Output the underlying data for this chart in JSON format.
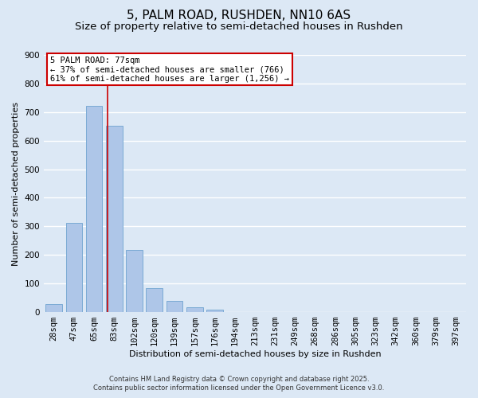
{
  "title": "5, PALM ROAD, RUSHDEN, NN10 6AS",
  "subtitle": "Size of property relative to semi-detached houses in Rushden",
  "xlabel": "Distribution of semi-detached houses by size in Rushden",
  "ylabel": "Number of semi-detached properties",
  "bin_labels": [
    "28sqm",
    "47sqm",
    "65sqm",
    "83sqm",
    "102sqm",
    "120sqm",
    "139sqm",
    "157sqm",
    "176sqm",
    "194sqm",
    "213sqm",
    "231sqm",
    "249sqm",
    "268sqm",
    "286sqm",
    "305sqm",
    "323sqm",
    "342sqm",
    "360sqm",
    "379sqm",
    "397sqm"
  ],
  "bar_values": [
    28,
    311,
    722,
    652,
    217,
    85,
    38,
    17,
    8,
    0,
    0,
    0,
    0,
    0,
    0,
    0,
    0,
    0,
    0,
    0,
    0
  ],
  "bar_color": "#aec6e8",
  "bar_edge_color": "#7aaad4",
  "background_color": "#dce8f5",
  "grid_color": "#ffffff",
  "vline_color": "#cc0000",
  "annotation_box_text": "5 PALM ROAD: 77sqm\n← 37% of semi-detached houses are smaller (766)\n61% of semi-detached houses are larger (1,256) →",
  "annotation_box_color": "#cc0000",
  "ylim": [
    0,
    900
  ],
  "yticks": [
    0,
    100,
    200,
    300,
    400,
    500,
    600,
    700,
    800,
    900
  ],
  "footer1": "Contains HM Land Registry data © Crown copyright and database right 2025.",
  "footer2": "Contains public sector information licensed under the Open Government Licence v3.0.",
  "title_fontsize": 11,
  "subtitle_fontsize": 9.5,
  "label_fontsize": 8,
  "tick_fontsize": 7.5,
  "annotation_fontsize": 7.5,
  "footer_fontsize": 6
}
